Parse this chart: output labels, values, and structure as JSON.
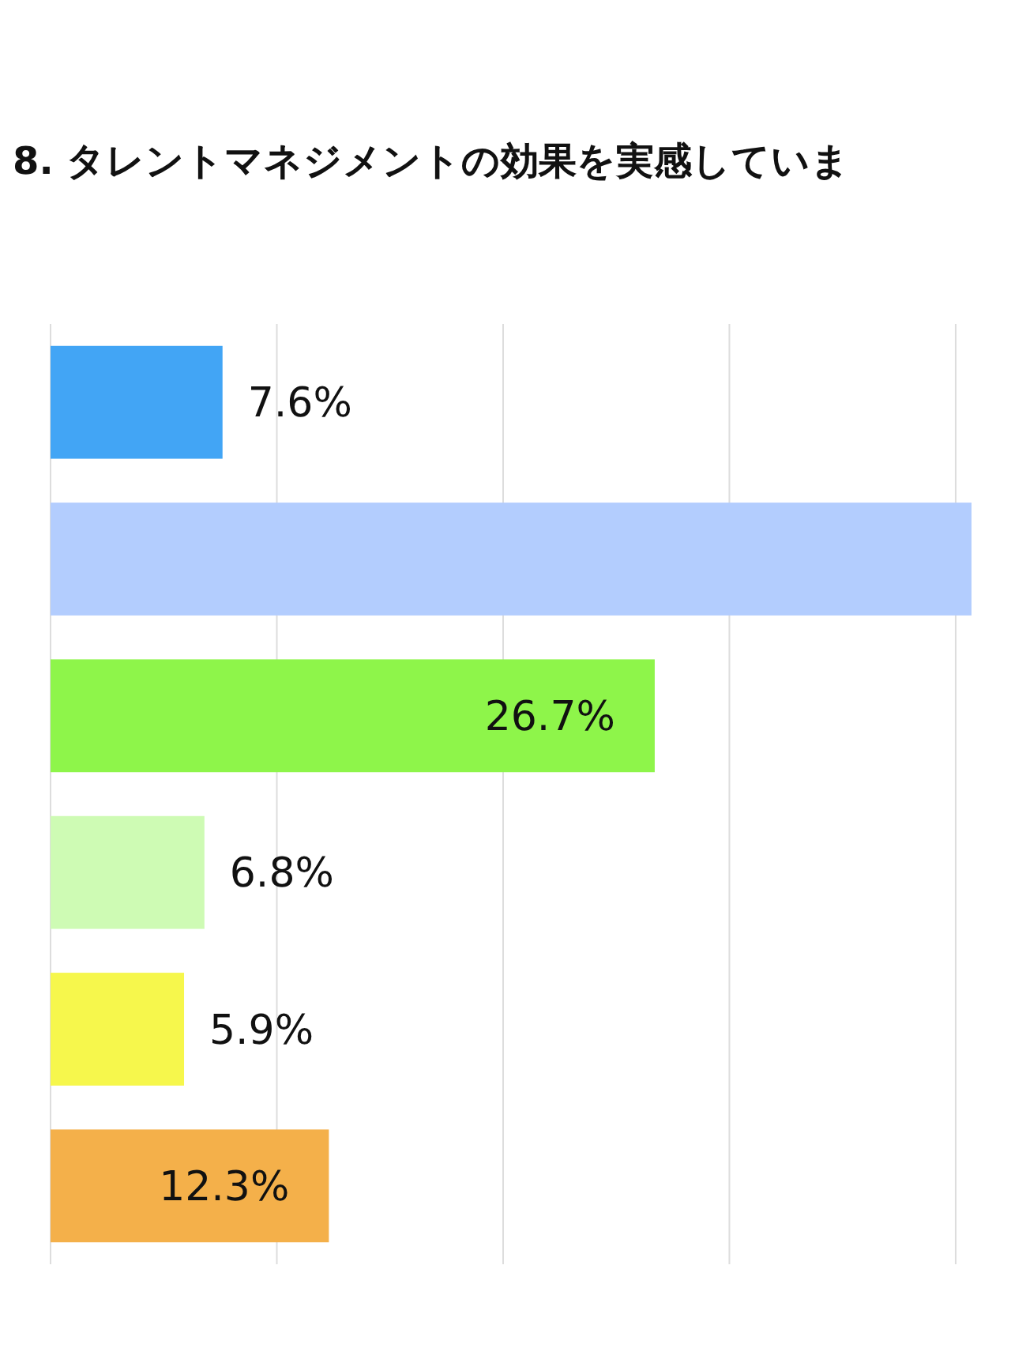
{
  "chart_data": {
    "type": "bar",
    "orientation": "horizontal",
    "title": "8. タレントマネジメントの効果を実感していま",
    "categories": [
      null,
      null,
      null,
      null,
      null,
      null
    ],
    "values": [
      7.6,
      40.7,
      26.7,
      6.8,
      5.9,
      12.3
    ],
    "colors": [
      "#42a5f5",
      "#b3cdfe",
      "#8ef54a",
      "#cefbb4",
      "#f6f74c",
      "#f4b04a"
    ],
    "value_labels": [
      "7.6%",
      null,
      "26.7%",
      "6.8%",
      "5.9%",
      "12.3%"
    ],
    "xticks": [
      {
        "value": 0,
        "label": null
      },
      {
        "value": 10,
        "label": null
      },
      {
        "value": 20,
        "label": null
      },
      {
        "value": 30,
        "label": null
      },
      {
        "value": 40,
        "label": null
      }
    ],
    "grid": "x"
  }
}
